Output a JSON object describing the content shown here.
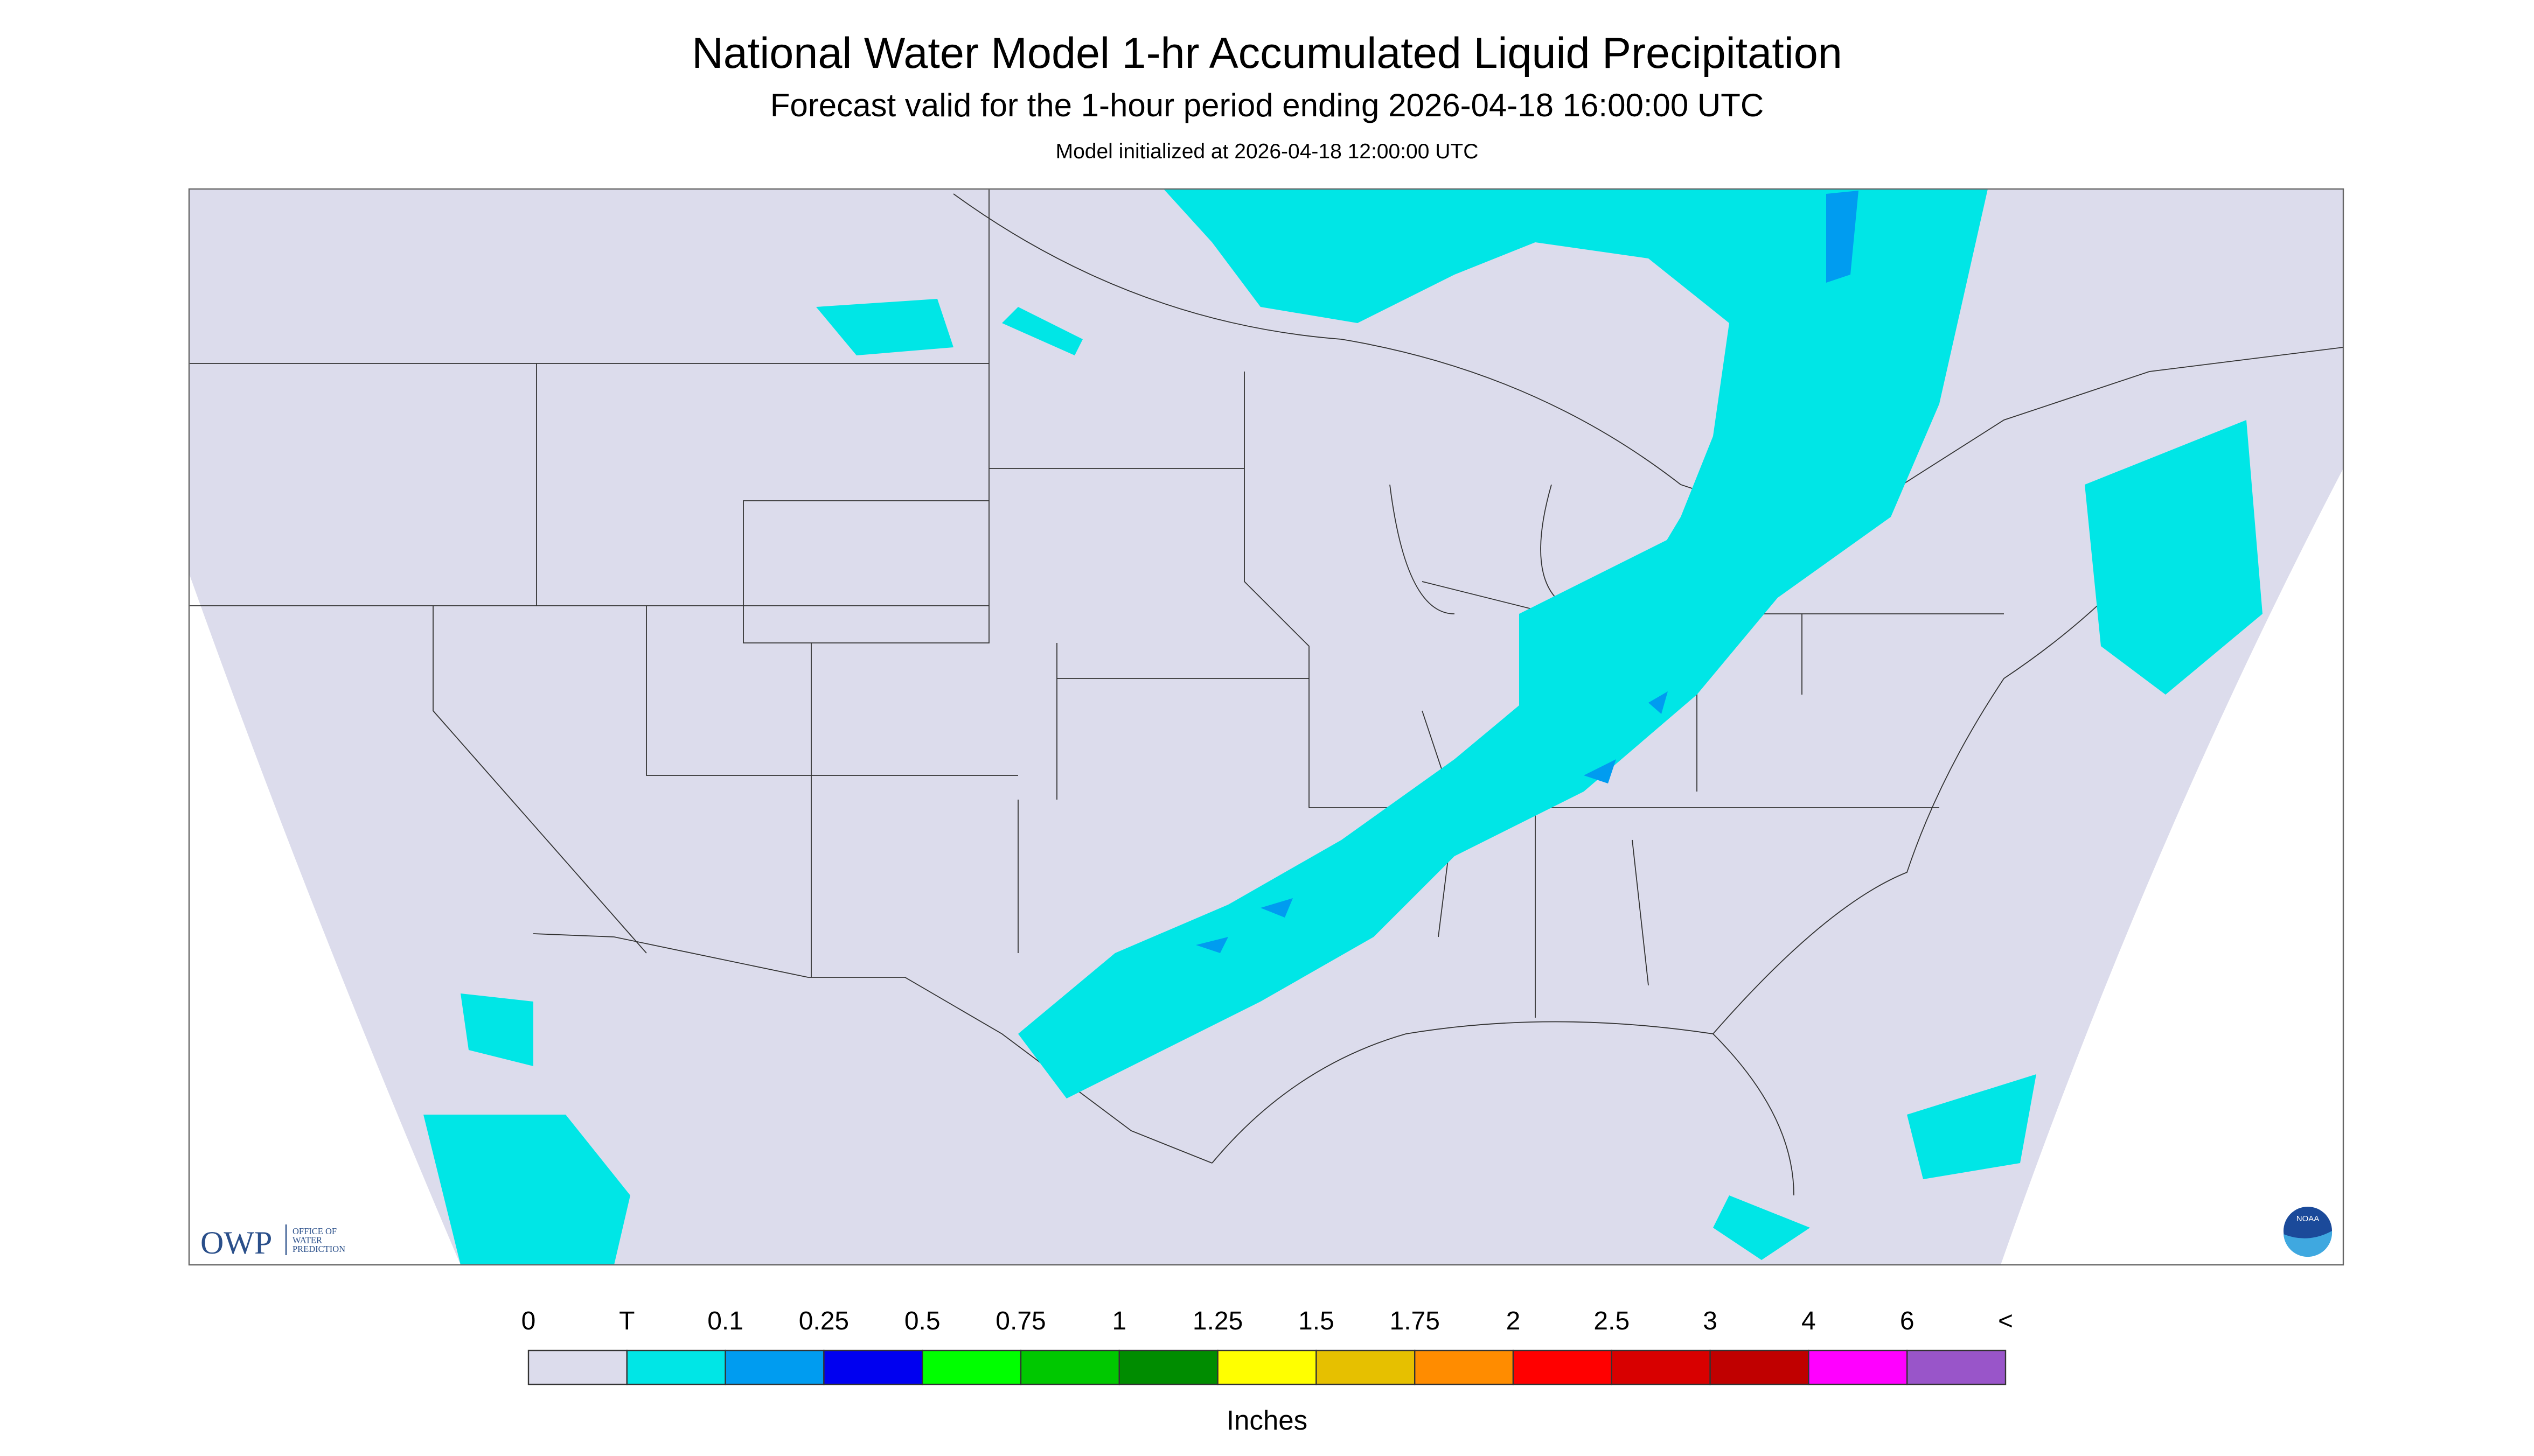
{
  "header": {
    "title": "National Water Model 1-hr Accumulated Liquid Precipitation",
    "subtitle": "Forecast valid for the 1-hour period ending 2026-04-18 16:00:00 UTC",
    "init": "Model initialized at 2026-04-18 12:00:00 UTC"
  },
  "legend": {
    "labels": [
      "0",
      "T",
      "0.1",
      "0.25",
      "0.5",
      "0.75",
      "1",
      "1.25",
      "1.5",
      "1.75",
      "2",
      "2.5",
      "3",
      "4",
      "6",
      "<"
    ],
    "colors": [
      "#dcdcec",
      "#00e6e6",
      "#009cf0",
      "#0000f0",
      "#00ff00",
      "#00c800",
      "#008c00",
      "#ffff00",
      "#e6c000",
      "#ff8c00",
      "#ff0000",
      "#d80000",
      "#c00000",
      "#ff00ff",
      "#9955c9"
    ],
    "unit": "Inches"
  },
  "logos": {
    "owp": "OWP",
    "owp_text": [
      "OFFICE OF",
      "WATER",
      "PREDICTION"
    ],
    "noaa": "NOAA"
  }
}
